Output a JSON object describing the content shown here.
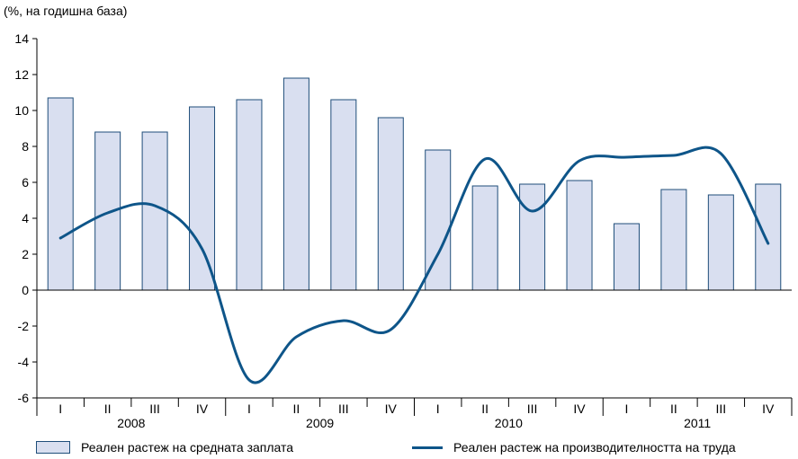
{
  "chart_data": {
    "type": "bar",
    "unit_label": "(%, на годишна база)",
    "ylim": [
      -6,
      14
    ],
    "yticks": [
      -6,
      -4,
      -2,
      0,
      2,
      4,
      6,
      8,
      10,
      12,
      14
    ],
    "quarters": [
      "I",
      "II",
      "III",
      "IV",
      "I",
      "II",
      "III",
      "IV",
      "I",
      "II",
      "III",
      "IV",
      "I",
      "II",
      "III",
      "IV"
    ],
    "years": [
      "2008",
      "2009",
      "2010",
      "2011"
    ],
    "series": [
      {
        "name": "Реален растеж на средната заплата",
        "kind": "bar",
        "values": [
          10.7,
          8.8,
          8.8,
          10.2,
          10.6,
          11.8,
          10.6,
          9.6,
          7.8,
          5.8,
          5.9,
          6.1,
          3.7,
          5.6,
          5.3,
          5.9
        ]
      },
      {
        "name": "Реален растеж на производителността на труда",
        "kind": "line",
        "smooth": true,
        "values": [
          2.9,
          4.3,
          4.7,
          2.3,
          -5.0,
          -2.6,
          -1.7,
          -2.2,
          2.0,
          7.3,
          4.4,
          7.2,
          7.4,
          7.5,
          7.6,
          2.6
        ]
      }
    ],
    "colors": {
      "bar_fill": "#d9dff0",
      "bar_stroke": "#1f4e7a",
      "line": "#0e5589",
      "axis": "#000000"
    },
    "grid": false,
    "legend_position": "bottom"
  }
}
